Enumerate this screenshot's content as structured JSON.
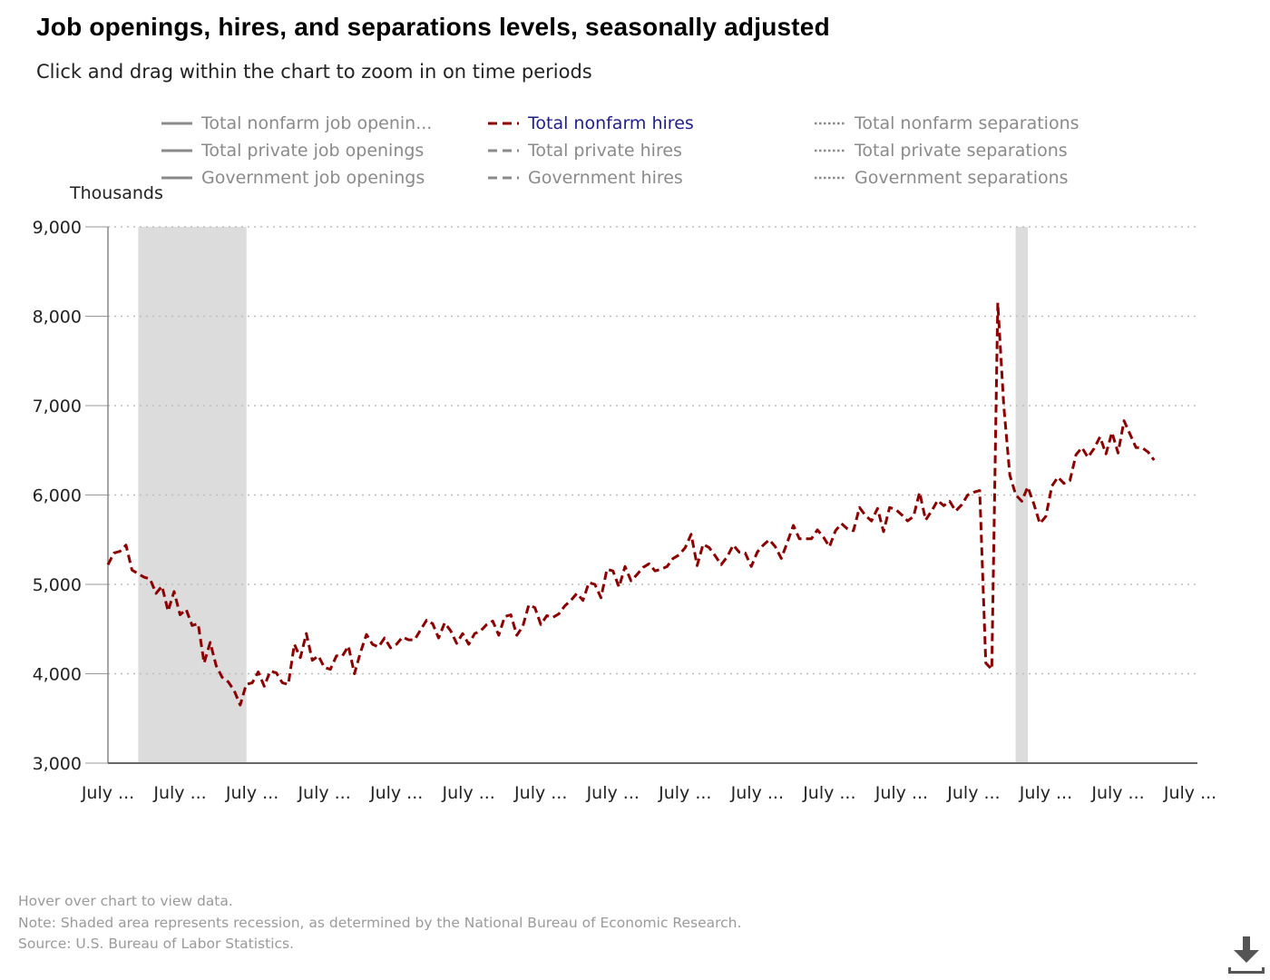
{
  "title": "Job openings, hires, and separations levels, seasonally adjusted",
  "subtitle": "Click and drag within the chart to zoom in on time periods",
  "legend": [
    {
      "label": "Total nonfarm job openin...",
      "style": "solid",
      "color": "#8a8a8a",
      "active": false
    },
    {
      "label": "Total nonfarm hires",
      "style": "dashed",
      "color": "#8b0000",
      "active": true
    },
    {
      "label": "Total nonfarm separations",
      "style": "dotted",
      "color": "#8a8a8a",
      "active": false
    },
    {
      "label": "Total private job openings",
      "style": "solid",
      "color": "#8a8a8a",
      "active": false
    },
    {
      "label": "Total private hires",
      "style": "dashed",
      "color": "#8a8a8a",
      "active": false
    },
    {
      "label": "Total private separations",
      "style": "dotted",
      "color": "#8a8a8a",
      "active": false
    },
    {
      "label": "Government job openings",
      "style": "solid",
      "color": "#8a8a8a",
      "active": false
    },
    {
      "label": "Government hires",
      "style": "dashed",
      "color": "#8a8a8a",
      "active": false
    },
    {
      "label": "Government separations",
      "style": "dotted",
      "color": "#8a8a8a",
      "active": false
    }
  ],
  "notes": {
    "hover": "Hover over chart to view data.",
    "note": "Note: Shaded area represents recession, as determined by the National Bureau of Economic Research.",
    "source": "Source: U.S. Bureau of Labor Statistics."
  },
  "icons": {
    "download": "download-icon"
  },
  "chart_data": {
    "type": "line",
    "title": "Job openings, hires, and separations levels, seasonally adjusted",
    "ylabel": "Thousands",
    "xlabel": "",
    "ylim": [
      3000,
      9000
    ],
    "yticks": [
      3000,
      4000,
      5000,
      6000,
      7000,
      8000,
      9000
    ],
    "ytick_labels": [
      "3,000",
      "4,000",
      "5,000",
      "6,000",
      "7,000",
      "8,000",
      "9,000"
    ],
    "x_tick_labels": [
      "July ...",
      "July ...",
      "July ...",
      "July ...",
      "July ...",
      "July ...",
      "July ...",
      "July ...",
      "July ...",
      "July ...",
      "July ...",
      "July ...",
      "July ...",
      "July ...",
      "July ...",
      "July ..."
    ],
    "xlim_years": [
      2007.5,
      2022.6
    ],
    "grid": "horizontal dotted",
    "recessions": [
      [
        2007.92,
        2009.42
      ],
      [
        2020.08,
        2020.25
      ]
    ],
    "series": [
      {
        "name": "Total nonfarm hires",
        "color": "#8b0000",
        "dash": "dashed",
        "x_start_year": 2007.5,
        "x_step_year": 0.08333,
        "values": [
          5220,
          5350,
          5370,
          5440,
          5160,
          5120,
          5080,
          5060,
          4900,
          4980,
          4700,
          4920,
          4660,
          4720,
          4540,
          4560,
          4120,
          4350,
          4090,
          3960,
          3910,
          3810,
          3650,
          3880,
          3900,
          4020,
          3860,
          4030,
          4010,
          3900,
          3880,
          4330,
          4180,
          4450,
          4150,
          4200,
          4070,
          4050,
          4200,
          4200,
          4310,
          4000,
          4240,
          4440,
          4330,
          4300,
          4400,
          4290,
          4330,
          4410,
          4380,
          4380,
          4490,
          4600,
          4560,
          4400,
          4570,
          4480,
          4340,
          4450,
          4330,
          4450,
          4480,
          4550,
          4590,
          4430,
          4640,
          4660,
          4430,
          4530,
          4770,
          4740,
          4550,
          4650,
          4630,
          4670,
          4760,
          4820,
          4900,
          4820,
          5020,
          5000,
          4850,
          5170,
          5150,
          4970,
          5200,
          5040,
          5110,
          5190,
          5230,
          5150,
          5170,
          5200,
          5290,
          5330,
          5410,
          5560,
          5210,
          5450,
          5410,
          5320,
          5220,
          5310,
          5440,
          5360,
          5350,
          5200,
          5360,
          5440,
          5500,
          5420,
          5290,
          5470,
          5660,
          5510,
          5510,
          5510,
          5610,
          5530,
          5420,
          5600,
          5680,
          5620,
          5600,
          5860,
          5770,
          5710,
          5850,
          5590,
          5860,
          5840,
          5780,
          5710,
          5760,
          6030,
          5720,
          5820,
          5940,
          5880,
          5930,
          5820,
          5890,
          6000,
          6030,
          6050,
          4120,
          4050,
          8150,
          7000,
          6220,
          6000,
          5930,
          6090,
          5900,
          5680,
          5760,
          6100,
          6200,
          6130,
          6160,
          6450,
          6530,
          6420,
          6520,
          6650,
          6460,
          6700,
          6470,
          6830,
          6680,
          6530,
          6530,
          6480,
          6390
        ]
      }
    ]
  }
}
